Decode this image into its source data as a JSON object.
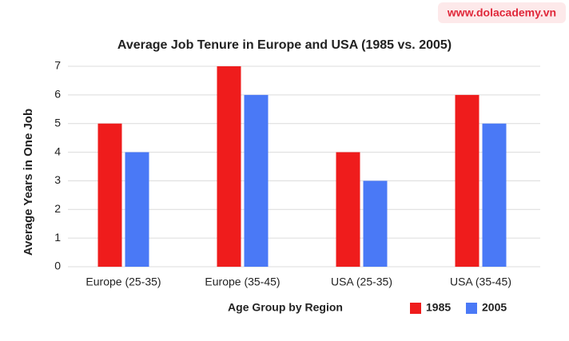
{
  "chart_data": {
    "type": "bar",
    "watermark": "www.dolacademy.vn",
    "title": "Average Job Tenure in Europe and USA (1985 vs. 2005)",
    "x_label": "Age Group by Region",
    "y_label": "Average Years in One Job",
    "categories": [
      "Europe (25-35)",
      "Europe (35-45)",
      "USA (25-35)",
      "USA (35-45)"
    ],
    "series": [
      {
        "name": "1985",
        "color": "#ef1c1c",
        "values": [
          5,
          7,
          4,
          6
        ]
      },
      {
        "name": "2005",
        "color": "#4a79f6",
        "values": [
          4,
          6,
          3,
          5
        ]
      }
    ],
    "ylim": [
      0,
      7
    ],
    "yticks": [
      0,
      1,
      2,
      3,
      4,
      5,
      6,
      7
    ],
    "grid": true,
    "legend": "bottom-right"
  }
}
